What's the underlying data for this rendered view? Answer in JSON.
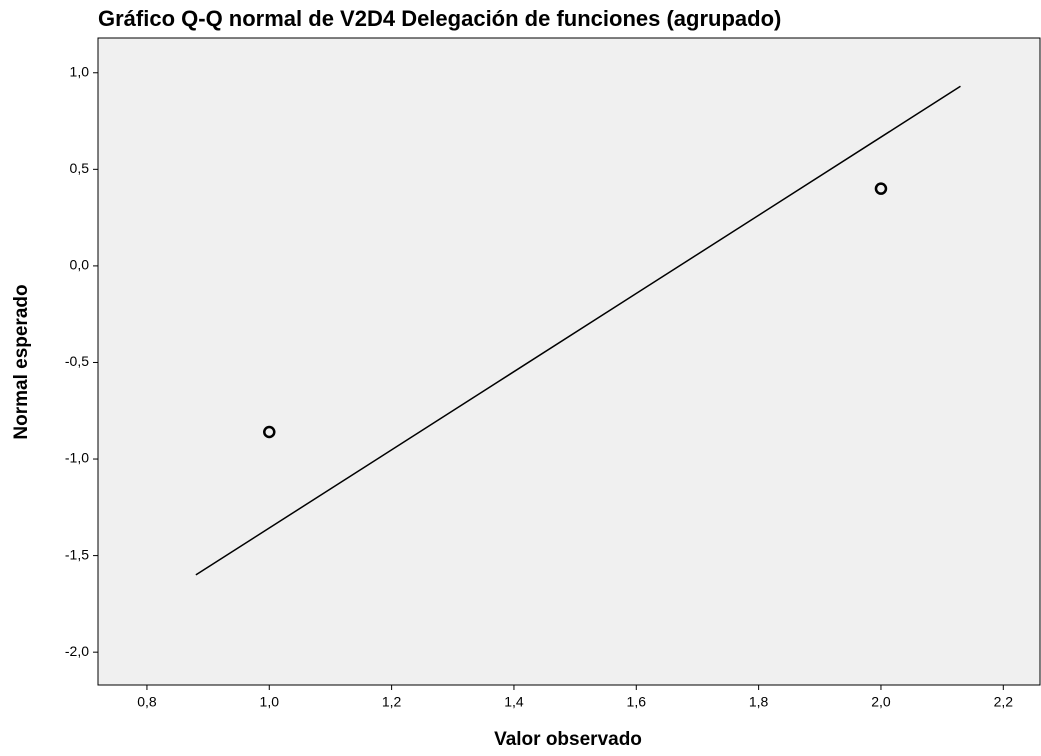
{
  "chart_data": {
    "type": "scatter",
    "title": "Gráfico Q-Q normal de V2D4 Delegación de funciones (agrupado)",
    "x_label": "Valor observado",
    "y_label": "Normal esperado",
    "x": [
      1.0,
      2.0
    ],
    "values": [
      -0.86,
      0.4
    ],
    "color": "#000000",
    "line": {
      "x": [
        0.88,
        2.13
      ],
      "y": [
        -1.6,
        0.93
      ]
    },
    "xlim": [
      0.72,
      2.26
    ],
    "ylim": [
      -2.17,
      1.18
    ],
    "xticks": [
      {
        "value": 0.8,
        "label": "0,8"
      },
      {
        "value": 1.0,
        "label": "1,0"
      },
      {
        "value": 1.2,
        "label": "1,2"
      },
      {
        "value": 1.4,
        "label": "1,4"
      },
      {
        "value": 1.6,
        "label": "1,6"
      },
      {
        "value": 1.8,
        "label": "1,8"
      },
      {
        "value": 2.0,
        "label": "2,0"
      },
      {
        "value": 2.2,
        "label": "2,2"
      }
    ],
    "yticks": [
      {
        "value": -2.0,
        "label": "-2,0"
      },
      {
        "value": -1.5,
        "label": "-1,5"
      },
      {
        "value": -1.0,
        "label": "-1,0"
      },
      {
        "value": -0.5,
        "label": "-0,5"
      },
      {
        "value": 0.0,
        "label": "0,0"
      },
      {
        "value": 0.5,
        "label": "0,5"
      },
      {
        "value": 1.0,
        "label": "1,0"
      }
    ]
  }
}
